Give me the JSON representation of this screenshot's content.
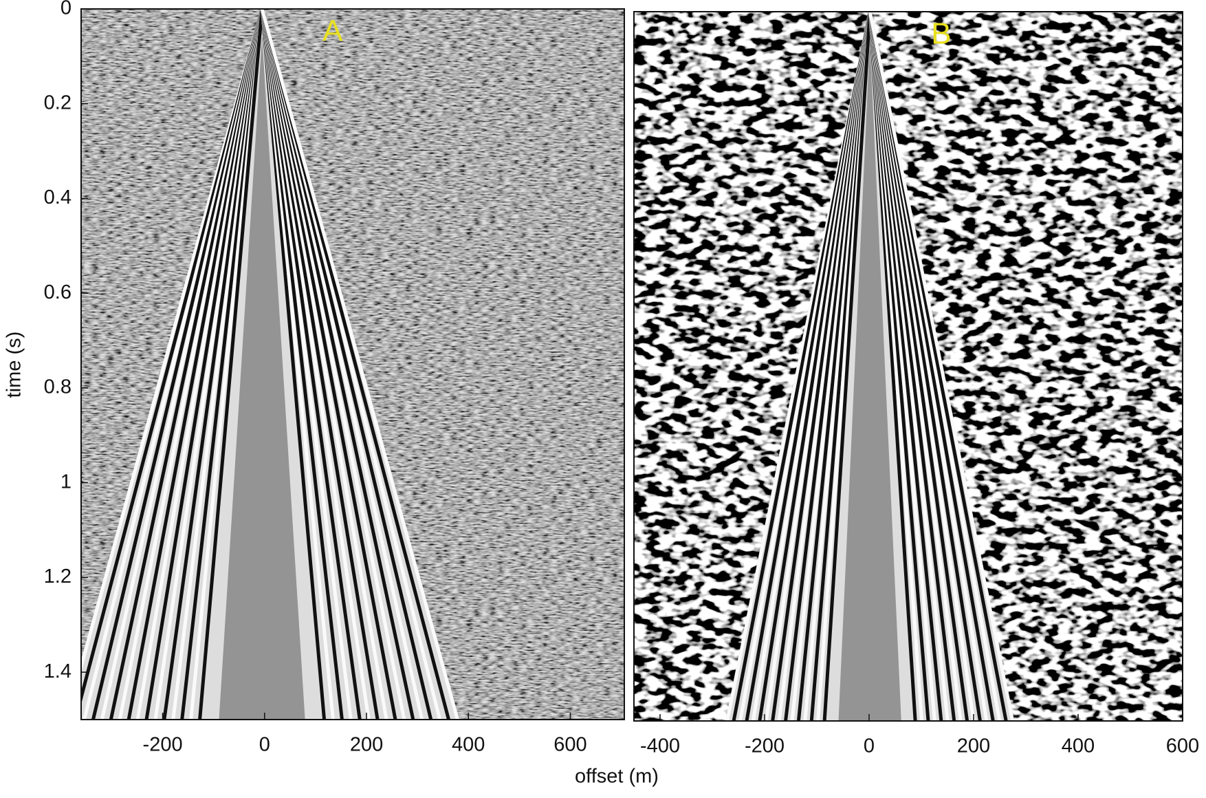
{
  "chart_data": [
    {
      "type": "seismic",
      "label": "A",
      "xlabel": "offset (m)",
      "ylabel": "time (s)",
      "xlim": [
        -360,
        706
      ],
      "xticks": [
        -200,
        0,
        200,
        400,
        600
      ],
      "ylim": [
        1.5,
        0
      ],
      "yticks": [
        0,
        0.2,
        0.4,
        0.6,
        0.8,
        1,
        1.2,
        1.4
      ]
    },
    {
      "type": "seismic",
      "label": "B",
      "xlim": [
        -450,
        600
      ],
      "xticks": [
        -400,
        -200,
        0,
        200,
        400,
        600
      ],
      "ylim": [
        1.5,
        0
      ]
    }
  ]
}
